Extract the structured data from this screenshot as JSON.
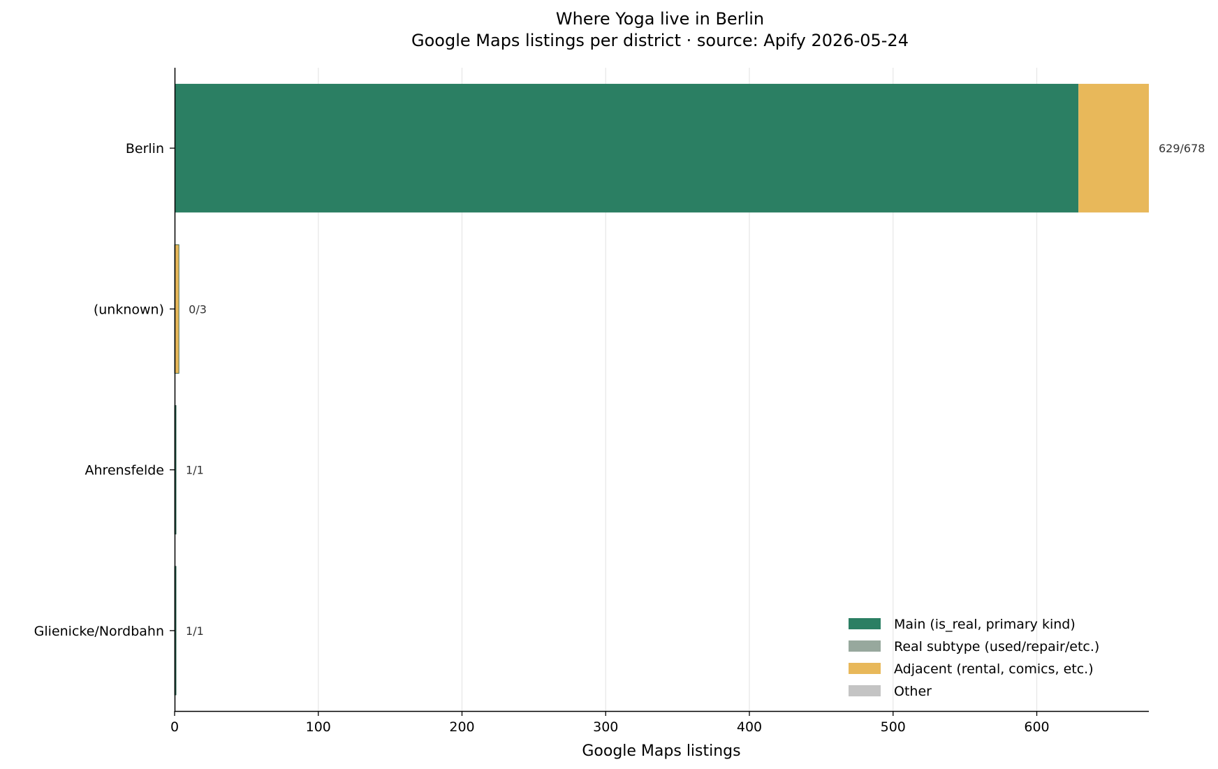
{
  "chart_data": {
    "type": "bar",
    "orientation": "horizontal",
    "stacked": true,
    "title": "Where Yoga live in Berlin",
    "subtitle": "Google Maps listings per district  ·  source: Apify 2026-05-24",
    "xlabel": "Google Maps listings",
    "ylabel": "",
    "xlim": [
      0,
      678
    ],
    "xticks": [
      0,
      100,
      200,
      300,
      400,
      500,
      600
    ],
    "grid": "vertical",
    "legend_position": "lower-right",
    "categories": [
      "Berlin",
      "(unknown)",
      "Ahrensfelde",
      "Glienicke/Nordbahn"
    ],
    "series": [
      {
        "name": "Main (is_real, primary kind)",
        "color": "#2b7f63",
        "values": [
          629,
          0,
          1,
          1
        ]
      },
      {
        "name": "Real subtype (used/repair/etc.)",
        "color": "#97a89d",
        "values": [
          0,
          0,
          0,
          0
        ]
      },
      {
        "name": "Adjacent (rental, comics, etc.)",
        "color": "#e8b85a",
        "values": [
          49,
          3,
          0,
          0
        ]
      },
      {
        "name": "Other",
        "color": "#c4c4c4",
        "values": [
          0,
          0,
          0,
          0
        ]
      }
    ],
    "bar_labels": [
      "629/678",
      "0/3",
      "1/1",
      "1/1"
    ]
  }
}
